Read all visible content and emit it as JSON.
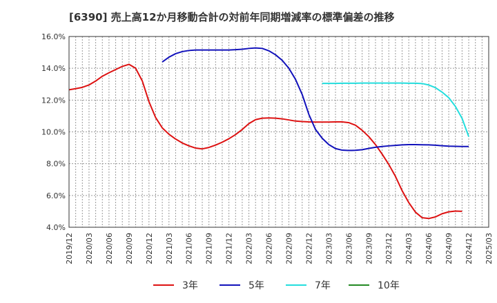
{
  "chart_data": {
    "type": "line",
    "title": "[6390]  売上高12か月移動合計の対前年同期増減率の標準偏差の推移",
    "xlabel": "",
    "ylabel": "",
    "ylim": [
      4,
      16
    ],
    "y_ticks": [
      "4.0%",
      "6.0%",
      "8.0%",
      "10.0%",
      "12.0%",
      "14.0%",
      "16.0%"
    ],
    "x_ticks": [
      "2019/12",
      "2020/03",
      "2020/06",
      "2020/09",
      "2020/12",
      "2021/03",
      "2021/06",
      "2021/09",
      "2021/12",
      "2022/03",
      "2022/06",
      "2022/09",
      "2022/12",
      "2023/03",
      "2023/06",
      "2023/09",
      "2023/12",
      "2024/03",
      "2024/06",
      "2024/09",
      "2024/12",
      "2025/03"
    ],
    "grid": true,
    "legend_position": "bottom",
    "series": [
      {
        "name": "3年",
        "color": "#dd1111",
        "start": "2019/12",
        "values": [
          12.65,
          12.72,
          12.8,
          12.95,
          13.2,
          13.5,
          13.72,
          13.92,
          14.12,
          14.25,
          14.0,
          13.2,
          11.9,
          10.9,
          10.25,
          9.85,
          9.55,
          9.3,
          9.12,
          8.98,
          8.93,
          9.02,
          9.17,
          9.35,
          9.57,
          9.83,
          10.15,
          10.52,
          10.77,
          10.86,
          10.88,
          10.86,
          10.82,
          10.75,
          10.68,
          10.65,
          10.63,
          10.62,
          10.62,
          10.62,
          10.63,
          10.63,
          10.58,
          10.42,
          10.1,
          9.7,
          9.2,
          8.6,
          7.95,
          7.2,
          6.3,
          5.55,
          4.95,
          4.6,
          4.55,
          4.65,
          4.85,
          4.97,
          5.02,
          5.0
        ]
      },
      {
        "name": "5年",
        "color": "#1111bb",
        "start": "2021/02",
        "values": [
          14.4,
          14.7,
          14.92,
          15.05,
          15.12,
          15.15,
          15.15,
          15.15,
          15.15,
          15.15,
          15.15,
          15.17,
          15.2,
          15.25,
          15.28,
          15.25,
          15.1,
          14.85,
          14.5,
          14.0,
          13.3,
          12.35,
          11.1,
          10.15,
          9.6,
          9.2,
          8.95,
          8.85,
          8.83,
          8.84,
          8.88,
          8.96,
          9.03,
          9.08,
          9.12,
          9.15,
          9.18,
          9.2,
          9.2,
          9.19,
          9.18,
          9.16,
          9.13,
          9.1,
          9.09,
          9.08,
          9.08
        ]
      },
      {
        "name": "7年",
        "color": "#22dddd",
        "start": "2023/02",
        "values": [
          13.05,
          13.05,
          13.05,
          13.06,
          13.06,
          13.06,
          13.07,
          13.07,
          13.07,
          13.07,
          13.07,
          13.07,
          13.07,
          13.06,
          13.06,
          13.04,
          12.95,
          12.78,
          12.5,
          12.15,
          11.6,
          10.85,
          9.7
        ]
      },
      {
        "name": "10年",
        "color": "#228822",
        "start": "2024/12",
        "values": []
      }
    ]
  }
}
